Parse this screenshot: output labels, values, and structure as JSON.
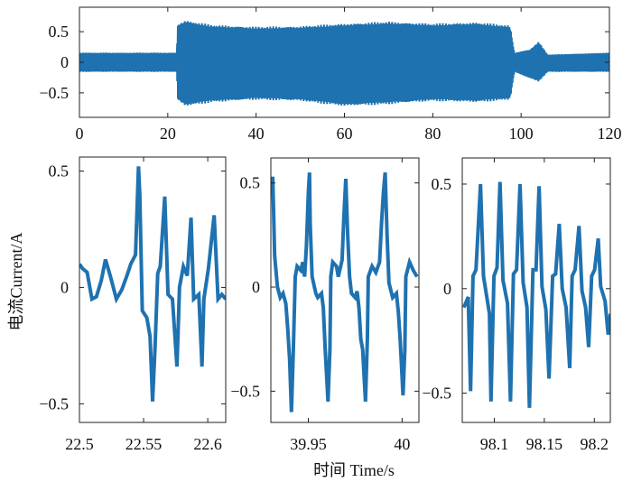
{
  "labels": {
    "ylabel": "电流Current/A",
    "xlabel": "时间 Time/s"
  },
  "colors": {
    "series": "#1f72b0",
    "axis": "#222222"
  },
  "chart_data": [
    {
      "type": "area",
      "name": "overview",
      "title": "",
      "description_kind": "envelope",
      "xlim": [
        0,
        120
      ],
      "ylim": [
        -0.9,
        0.9
      ],
      "xticks": [
        0,
        20,
        40,
        60,
        80,
        100,
        120
      ],
      "xtick_labels": [
        "0",
        "20",
        "40",
        "60",
        "80",
        "100",
        "120"
      ],
      "yticks": [
        0.5,
        0,
        -0.5
      ],
      "ytick_labels": [
        "0.5",
        "0",
        "−0.5"
      ],
      "x": [
        0,
        22,
        22.3,
        24,
        30,
        40,
        50,
        60,
        70,
        80,
        90,
        97.5,
        98.5,
        102,
        104,
        106,
        120
      ],
      "upper": [
        0.15,
        0.15,
        0.6,
        0.65,
        0.58,
        0.55,
        0.56,
        0.6,
        0.63,
        0.6,
        0.62,
        0.57,
        0.15,
        0.2,
        0.32,
        0.12,
        0.15
      ],
      "lower": [
        -0.15,
        -0.15,
        -0.6,
        -0.68,
        -0.62,
        -0.58,
        -0.6,
        -0.68,
        -0.65,
        -0.6,
        -0.62,
        -0.58,
        -0.15,
        -0.25,
        -0.3,
        -0.15,
        -0.15
      ]
    },
    {
      "type": "line",
      "name": "zoom-22.5",
      "xlim": [
        22.5,
        22.614
      ],
      "ylim": [
        -0.58,
        0.56
      ],
      "xticks": [
        22.5,
        22.55,
        22.6
      ],
      "xtick_labels": [
        "22.5",
        "22.55",
        "22.6"
      ],
      "yticks": [
        0.5,
        0,
        -0.5
      ],
      "ytick_labels": [
        "0.5",
        "0",
        "−0.5"
      ],
      "x": [
        22.5,
        22.5026,
        22.506,
        22.5097,
        22.5132,
        22.517,
        22.5203,
        22.524,
        22.5288,
        22.533,
        22.537,
        22.54,
        22.5437,
        22.546,
        22.547,
        22.549,
        22.5525,
        22.555,
        22.557,
        22.559,
        22.561,
        22.563,
        22.5665,
        22.569,
        22.5725,
        22.576,
        22.578,
        22.581,
        22.584,
        22.587,
        22.589,
        22.593,
        22.5955,
        22.597,
        22.6005,
        22.605,
        22.608,
        22.611,
        22.614
      ],
      "y": [
        0.1,
        0.08,
        0.065,
        -0.05,
        -0.04,
        0.03,
        0.12,
        0.05,
        -0.05,
        -0.01,
        0.05,
        0.1,
        0.14,
        0.52,
        0.4,
        -0.1,
        -0.13,
        -0.21,
        -0.49,
        -0.25,
        0.06,
        0.09,
        0.39,
        -0.03,
        -0.05,
        -0.34,
        0,
        0.09,
        0.05,
        0.3,
        -0.05,
        -0.03,
        -0.34,
        -0.05,
        0.08,
        0.31,
        -0.05,
        -0.03,
        -0.05
      ]
    },
    {
      "type": "line",
      "name": "zoom-39.95",
      "xlim": [
        39.93,
        40.009
      ],
      "ylim": [
        -0.65,
        0.62
      ],
      "xticks": [
        39.95,
        40
      ],
      "xtick_labels": [
        "39.95",
        "40"
      ],
      "yticks": [
        0.5,
        0,
        -0.5
      ],
      "ytick_labels": [
        "0.5",
        "0",
        "−0.5"
      ],
      "x": [
        39.93,
        39.931,
        39.932,
        39.9335,
        39.935,
        39.9365,
        39.938,
        39.939,
        39.94,
        39.941,
        39.942,
        39.943,
        39.944,
        39.946,
        39.947,
        39.948,
        39.949,
        39.95,
        39.9506,
        39.951,
        39.952,
        39.954,
        39.955,
        39.957,
        39.958,
        39.959,
        39.9605,
        39.9615,
        39.962,
        39.963,
        39.965,
        39.966,
        39.968,
        39.969,
        39.97,
        39.971,
        39.972,
        39.973,
        39.975,
        39.976,
        39.977,
        39.978,
        39.979,
        39.9805,
        39.9815,
        39.982,
        39.984,
        39.986,
        39.988,
        39.989,
        39.99,
        39.991,
        39.992,
        39.993,
        39.995,
        39.997,
        39.998,
        39.999,
        40.0005,
        40.0015,
        40.002,
        40.004,
        40.006,
        40.008
      ],
      "y": [
        0.45,
        0.53,
        0.15,
        0.0,
        -0.05,
        -0.03,
        -0.08,
        -0.2,
        -0.35,
        -0.6,
        -0.3,
        0.05,
        0.1,
        0.08,
        0.12,
        0.05,
        0.2,
        0.45,
        0.55,
        0.3,
        0.05,
        -0.03,
        -0.05,
        -0.03,
        -0.1,
        -0.3,
        -0.55,
        -0.3,
        0.05,
        0.12,
        0.1,
        0.05,
        0.13,
        0.35,
        0.52,
        0.25,
        0.05,
        -0.03,
        -0.05,
        -0.02,
        -0.1,
        -0.25,
        -0.3,
        -0.55,
        -0.25,
        0.05,
        0.1,
        0.07,
        0.12,
        0.3,
        0.45,
        0.55,
        0.25,
        0.02,
        -0.05,
        -0.03,
        -0.12,
        -0.25,
        -0.52,
        -0.3,
        0.05,
        0.12,
        0.08,
        0.05
      ]
    },
    {
      "type": "line",
      "name": "zoom-98.1",
      "xlim": [
        98.068,
        98.216
      ],
      "ylim": [
        -0.64,
        0.625
      ],
      "xticks": [
        98.1,
        98.15,
        98.2
      ],
      "xtick_labels": [
        "98.1",
        "98.15",
        "98.2"
      ],
      "yticks": [
        0.5,
        0,
        -0.5
      ],
      "ytick_labels": [
        "0.5",
        "0",
        "−0.5"
      ],
      "x": [
        98.0696,
        98.074,
        98.0763,
        98.0787,
        98.0817,
        98.0862,
        98.0892,
        98.0952,
        98.0967,
        98.0997,
        98.1027,
        98.1057,
        98.1087,
        98.1132,
        98.1162,
        98.1192,
        98.1222,
        98.1258,
        98.1288,
        98.1327,
        98.1351,
        98.1387,
        98.1417,
        98.1448,
        98.1477,
        98.1516,
        98.1547,
        98.1583,
        98.1613,
        98.1649,
        98.1679,
        98.1718,
        98.1754,
        98.1778,
        98.1808,
        98.1847,
        98.1877,
        98.1913,
        98.1943,
        98.1973,
        98.2003,
        98.2039,
        98.2063,
        98.2108,
        98.2138,
        98.2162
      ],
      "y": [
        -0.09,
        -0.04,
        -0.49,
        0.06,
        0.09,
        0.5,
        0.06,
        -0.12,
        -0.54,
        0.06,
        0.1,
        0.51,
        0.04,
        -0.07,
        -0.54,
        0.07,
        0.09,
        0.5,
        0.03,
        -0.09,
        -0.57,
        0.09,
        0.09,
        0.49,
        0.01,
        -0.1,
        -0.43,
        0.06,
        0.07,
        0.31,
        0,
        -0.09,
        -0.38,
        0.06,
        0.09,
        0.3,
        -0.01,
        -0.09,
        -0.28,
        0.06,
        0.09,
        0.24,
        0.01,
        -0.06,
        -0.22,
        -0.12
      ]
    }
  ]
}
